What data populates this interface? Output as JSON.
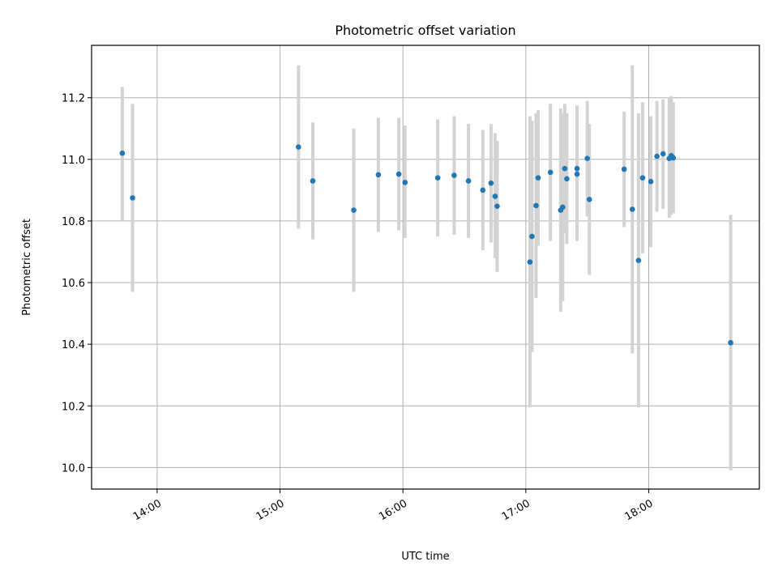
{
  "chart_data": {
    "type": "scatter",
    "title": "Photometric offset variation",
    "xlabel": "UTC time",
    "ylabel": "Photometric offset",
    "x_ticks": [
      "14:00",
      "15:00",
      "16:00",
      "17:00",
      "18:00"
    ],
    "y_ticks": [
      "10.0",
      "10.2",
      "10.4",
      "10.6",
      "10.8",
      "11.0",
      "11.2"
    ],
    "xlim": [
      "13:28",
      "18:54"
    ],
    "ylim": [
      9.93,
      11.37
    ],
    "grid": true,
    "colors": {
      "marker": "#1f77b4",
      "errorbar": "#d3d3d3",
      "grid": "#b0b0b0"
    },
    "points": [
      {
        "t": "13:43",
        "y": 11.02,
        "lo": 10.8,
        "hi": 11.235
      },
      {
        "t": "13:48",
        "y": 10.875,
        "lo": 10.57,
        "hi": 11.18
      },
      {
        "t": "15:09",
        "y": 11.04,
        "lo": 10.775,
        "hi": 11.305
      },
      {
        "t": "15:16",
        "y": 10.93,
        "lo": 10.74,
        "hi": 11.12
      },
      {
        "t": "15:36",
        "y": 10.835,
        "lo": 10.57,
        "hi": 11.1
      },
      {
        "t": "15:48",
        "y": 10.95,
        "lo": 10.765,
        "hi": 11.135
      },
      {
        "t": "15:58",
        "y": 10.952,
        "lo": 10.77,
        "hi": 11.135
      },
      {
        "t": "16:01",
        "y": 10.925,
        "lo": 10.745,
        "hi": 11.11
      },
      {
        "t": "16:17",
        "y": 10.94,
        "lo": 10.75,
        "hi": 11.13
      },
      {
        "t": "16:25",
        "y": 10.948,
        "lo": 10.755,
        "hi": 11.14
      },
      {
        "t": "16:32",
        "y": 10.93,
        "lo": 10.745,
        "hi": 11.115
      },
      {
        "t": "16:39",
        "y": 10.9,
        "lo": 10.705,
        "hi": 11.095
      },
      {
        "t": "16:43",
        "y": 10.923,
        "lo": 10.73,
        "hi": 11.115
      },
      {
        "t": "16:45",
        "y": 10.88,
        "lo": 10.68,
        "hi": 11.085
      },
      {
        "t": "16:46",
        "y": 10.848,
        "lo": 10.635,
        "hi": 11.06
      },
      {
        "t": "17:02",
        "y": 10.667,
        "lo": 10.195,
        "hi": 11.14
      },
      {
        "t": "17:03",
        "y": 10.75,
        "lo": 10.375,
        "hi": 11.125
      },
      {
        "t": "17:05",
        "y": 10.85,
        "lo": 10.55,
        "hi": 11.15
      },
      {
        "t": "17:06",
        "y": 10.94,
        "lo": 10.72,
        "hi": 11.16
      },
      {
        "t": "17:12",
        "y": 10.958,
        "lo": 10.735,
        "hi": 11.18
      },
      {
        "t": "17:17",
        "y": 10.835,
        "lo": 10.505,
        "hi": 11.165
      },
      {
        "t": "17:18",
        "y": 10.845,
        "lo": 10.54,
        "hi": 11.15
      },
      {
        "t": "17:19",
        "y": 10.97,
        "lo": 10.76,
        "hi": 11.18
      },
      {
        "t": "17:20",
        "y": 10.937,
        "lo": 10.725,
        "hi": 11.15
      },
      {
        "t": "17:25",
        "y": 10.97,
        "lo": 10.765,
        "hi": 11.175
      },
      {
        "t": "17:25",
        "y": 10.952,
        "lo": 10.735,
        "hi": 11.17
      },
      {
        "t": "17:30",
        "y": 11.003,
        "lo": 10.815,
        "hi": 11.19
      },
      {
        "t": "17:31",
        "y": 10.87,
        "lo": 10.625,
        "hi": 11.115
      },
      {
        "t": "17:48",
        "y": 10.968,
        "lo": 10.78,
        "hi": 11.155
      },
      {
        "t": "17:52",
        "y": 10.838,
        "lo": 10.37,
        "hi": 11.305
      },
      {
        "t": "17:55",
        "y": 10.672,
        "lo": 10.195,
        "hi": 11.15
      },
      {
        "t": "17:57",
        "y": 10.94,
        "lo": 10.695,
        "hi": 11.185
      },
      {
        "t": "18:01",
        "y": 10.928,
        "lo": 10.715,
        "hi": 11.14
      },
      {
        "t": "18:04",
        "y": 11.01,
        "lo": 10.83,
        "hi": 11.19
      },
      {
        "t": "18:07",
        "y": 11.018,
        "lo": 10.84,
        "hi": 11.195
      },
      {
        "t": "18:10",
        "y": 11.003,
        "lo": 10.81,
        "hi": 11.2
      },
      {
        "t": "18:11",
        "y": 11.012,
        "lo": 10.82,
        "hi": 11.205
      },
      {
        "t": "18:12",
        "y": 11.005,
        "lo": 10.825,
        "hi": 11.185
      },
      {
        "t": "18:40",
        "y": 10.405,
        "lo": 9.99,
        "hi": 10.82
      }
    ]
  }
}
